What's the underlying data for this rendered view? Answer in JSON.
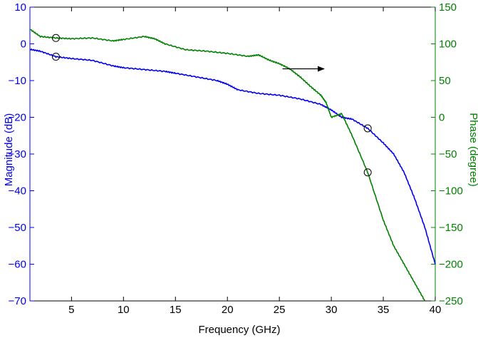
{
  "chart_data": {
    "type": "line",
    "xlabel": "Frequency (GHz)",
    "ylabel_left": "Magnitude (dB)",
    "ylabel_right": "Phase (degree)",
    "xlim": [
      1,
      40
    ],
    "ylim_left": [
      -70,
      10
    ],
    "ylim_right": [
      -250,
      150
    ],
    "x_ticks": [
      5,
      10,
      15,
      20,
      25,
      30,
      35,
      40
    ],
    "y_ticks_left": [
      10,
      0,
      -10,
      -20,
      -30,
      -40,
      -50,
      -60,
      -70
    ],
    "y_ticks_right": [
      150,
      100,
      50,
      0,
      -50,
      -100,
      -150,
      -200,
      -250
    ],
    "grid": false,
    "colors": {
      "magnitude": "#0000ee",
      "phase": "#008000",
      "axes": "#000000"
    },
    "series": [
      {
        "axis": "left",
        "x": [
          1,
          2,
          3.5,
          5,
          7,
          9,
          10,
          12,
          14,
          15,
          17,
          19,
          20,
          21,
          23,
          25,
          27,
          29,
          30,
          31,
          32,
          33.5,
          35,
          36,
          37,
          38,
          39,
          40
        ],
        "y": [
          -1.5,
          -2,
          -3.5,
          -4,
          -4.5,
          -6,
          -6.5,
          -7,
          -7.5,
          -8,
          -9,
          -10,
          -11,
          -12.5,
          -13.5,
          -14,
          -15,
          -16.5,
          -18,
          -20,
          -20.5,
          -23,
          -27,
          -30,
          -35,
          -42,
          -50,
          -60
        ]
      },
      {
        "axis": "right",
        "x": [
          1,
          2,
          3.5,
          5,
          7,
          9,
          10,
          12,
          13,
          14,
          16,
          18,
          20,
          22,
          23,
          24,
          25,
          26,
          27,
          28,
          29,
          29.5,
          30,
          31,
          32,
          33.5,
          35,
          36,
          37,
          38,
          39
        ],
        "y": [
          120,
          110,
          108,
          107,
          108,
          104,
          106,
          110,
          107,
          100,
          92,
          90,
          87,
          83,
          85,
          78,
          73,
          66,
          55,
          42,
          30,
          20,
          0,
          5,
          -25,
          -75,
          -140,
          -175,
          -200,
          -225,
          -250
        ]
      }
    ],
    "markers": [
      {
        "axis": "left",
        "x": 3.5,
        "y": -3.5
      },
      {
        "axis": "left",
        "x": 33.5,
        "y": -23
      },
      {
        "axis": "right",
        "x": 3.5,
        "y": 108
      },
      {
        "axis": "right",
        "x": 33.5,
        "y": -75
      }
    ],
    "annotation_arrow": {
      "axis": "left",
      "from": [
        25.3,
        -6.8
      ],
      "to": [
        29.3,
        -6.8
      ]
    }
  }
}
